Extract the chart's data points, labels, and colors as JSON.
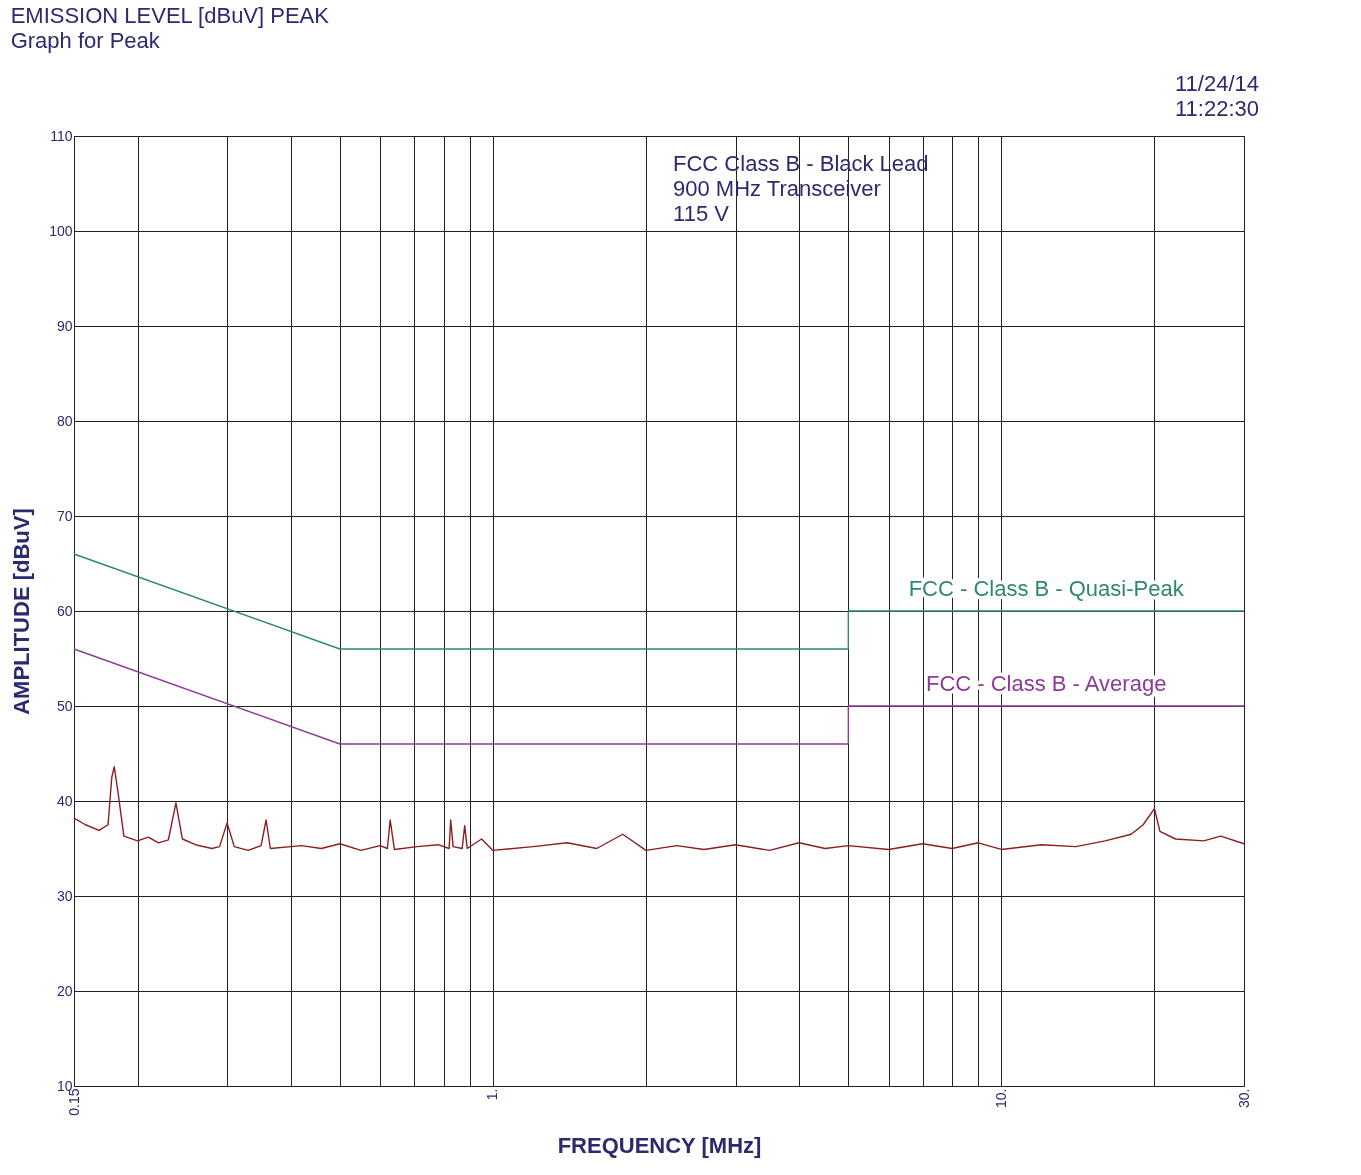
{
  "chart_data": {
    "type": "line",
    "title": "EMISSION LEVEL [dBuV] PEAK",
    "subtitle": "Graph for Peak",
    "xlabel": "FREQUENCY [MHz]",
    "ylabel": "AMPLITUDE [dBuV]",
    "annotations": [
      "11/24/14",
      "11:22:30",
      "FCC Class B - Black Lead",
      "900 MHz Transceiver",
      "115 V"
    ],
    "log": "x",
    "grid": true,
    "marker": "none",
    "line_style": "solid",
    "xlim": [
      0.15,
      30
    ],
    "ylim": [
      10,
      110
    ],
    "xticks": [
      0.15,
      {
        "value": 0.2,
        "label": null
      },
      {
        "value": 0.3,
        "label": null
      },
      {
        "value": 0.4,
        "label": null
      },
      {
        "value": 0.5,
        "label": null
      },
      {
        "value": 0.6,
        "label": null
      },
      {
        "value": 0.7,
        "label": null
      },
      {
        "value": 0.8,
        "label": null
      },
      {
        "value": 0.9,
        "label": null
      },
      {
        "value": 1,
        "label": "1."
      },
      {
        "value": 2,
        "label": null
      },
      {
        "value": 3,
        "label": null
      },
      {
        "value": 4,
        "label": null
      },
      {
        "value": 5,
        "label": null
      },
      {
        "value": 6,
        "label": null
      },
      {
        "value": 7,
        "label": null
      },
      {
        "value": 8,
        "label": null
      },
      {
        "value": 9,
        "label": null
      },
      {
        "value": 10,
        "label": "10."
      },
      {
        "value": 20,
        "label": null
      },
      {
        "value": 30,
        "label": "30."
      }
    ],
    "yticks": [
      10,
      20,
      30,
      40,
      50,
      60,
      70,
      80,
      90,
      100,
      110
    ],
    "series": [
      {
        "color": "#8b1f1f",
        "x": [
          0.15,
          0.158,
          0.168,
          0.175,
          0.178,
          0.18,
          0.183,
          0.188,
          0.2,
          0.21,
          0.22,
          0.23,
          0.238,
          0.245,
          0.26,
          0.28,
          0.29,
          0.3,
          0.31,
          0.33,
          0.35,
          0.358,
          0.365,
          0.42,
          0.46,
          0.5,
          0.55,
          0.6,
          0.62,
          0.628,
          0.64,
          0.71,
          0.78,
          0.82,
          0.826,
          0.835,
          0.87,
          0.88,
          0.89,
          0.95,
          1.0,
          1.2,
          1.4,
          1.6,
          1.8,
          2.0,
          2.3,
          2.6,
          3.0,
          3.5,
          4.0,
          4.5,
          5.0,
          6.0,
          7.0,
          8.0,
          9.0,
          10,
          12,
          14,
          16,
          18,
          19,
          20,
          20.5,
          22,
          25,
          27,
          30
        ],
        "values": [
          38.2,
          37.5,
          36.9,
          37.5,
          42.5,
          43.6,
          41,
          36.3,
          35.8,
          36.2,
          35.6,
          35.9,
          39.8,
          36,
          35.4,
          35.0,
          35.2,
          37.7,
          35.2,
          34.8,
          35.3,
          38,
          35,
          35.3,
          35.0,
          35.5,
          34.8,
          35.3,
          35.0,
          38,
          34.9,
          35.2,
          35.4,
          35.0,
          38,
          35.2,
          35.0,
          37.4,
          35.0,
          36.0,
          34.8,
          35.2,
          35.6,
          35.0,
          36.5,
          34.8,
          35.3,
          34.9,
          35.4,
          34.8,
          35.6,
          35.0,
          35.3,
          34.9,
          35.5,
          35.0,
          35.6,
          34.9,
          35.4,
          35.2,
          35.8,
          36.5,
          37.5,
          39.2,
          36.8,
          36.0,
          35.8,
          36.3,
          35.5
        ]
      },
      {
        "name": "FCC - Class B - Quasi-Peak",
        "color": "#2e8770",
        "x": [
          0.15,
          0.5,
          5,
          5,
          30
        ],
        "values": [
          66,
          56,
          56,
          60,
          60
        ]
      },
      {
        "name": "FCC - Class B - Average",
        "color": "#8e3a9a",
        "x": [
          0.15,
          0.5,
          5,
          5,
          30
        ],
        "values": [
          56,
          46,
          46,
          50,
          50
        ]
      }
    ]
  }
}
